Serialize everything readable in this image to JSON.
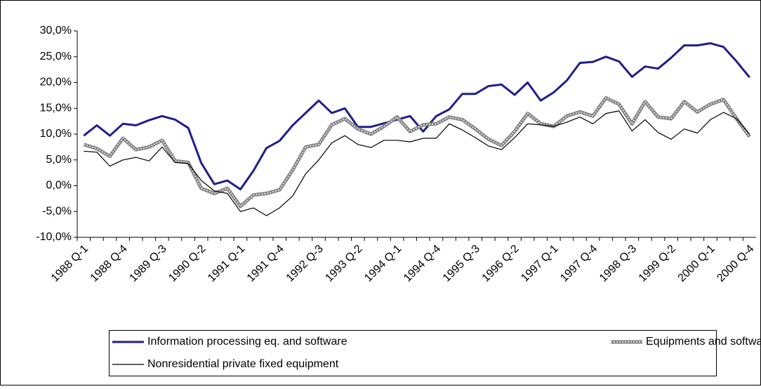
{
  "chart_data": {
    "type": "line",
    "categories": [
      "1988 Q-1",
      null,
      null,
      "1988 Q-4",
      null,
      null,
      "1989 Q-3",
      null,
      null,
      "1990 Q-2",
      null,
      null,
      "1991 Q-1",
      null,
      null,
      "1991 Q-4",
      null,
      null,
      "1992 Q-3",
      null,
      null,
      "1993 Q-2",
      null,
      null,
      "1994 Q-1",
      null,
      null,
      "1994 Q-4",
      null,
      null,
      "1995 Q-3",
      null,
      null,
      "1996 Q-2",
      null,
      null,
      "1997 Q-1",
      null,
      null,
      "1997 Q-4",
      null,
      null,
      "1998 Q-3",
      null,
      null,
      "1999 Q-2",
      null,
      null,
      "2000 Q-1",
      null,
      null,
      "2000 Q-4"
    ],
    "series": [
      {
        "name": "Information processing eq. and software",
        "color": "#1f1f8c",
        "values": [
          9.7,
          11.7,
          9.7,
          12.0,
          11.7,
          12.7,
          13.5,
          12.8,
          11.2,
          4.4,
          0.3,
          1.0,
          -0.7,
          2.9,
          7.3,
          8.7,
          11.7,
          14.1,
          16.5,
          14.1,
          15.0,
          11.4,
          11.4,
          12.1,
          12.8,
          13.5,
          10.5,
          13.5,
          14.8,
          17.8,
          17.8,
          19.3,
          19.6,
          17.6,
          20.0,
          16.5,
          18.1,
          20.4,
          23.8,
          24.0,
          25.0,
          24.1,
          21.1,
          23.1,
          22.7,
          24.8,
          27.2,
          27.2,
          27.6,
          26.9,
          24.1,
          21.0
        ]
      },
      {
        "name": "Equipments and software",
        "color": "#808080",
        "values": [
          8.0,
          7.2,
          5.7,
          9.2,
          7.0,
          7.5,
          8.8,
          4.8,
          4.5,
          -0.5,
          -1.5,
          -0.5,
          -4.0,
          -1.8,
          -1.5,
          -0.8,
          3.0,
          7.5,
          8.0,
          11.8,
          13.0,
          11.0,
          10.0,
          11.5,
          13.3,
          10.5,
          11.8,
          12.0,
          13.3,
          12.8,
          11.0,
          9.0,
          7.8,
          10.5,
          14.0,
          12.0,
          11.5,
          13.5,
          14.3,
          13.5,
          17.0,
          15.8,
          12.0,
          16.3,
          13.3,
          13.0,
          16.3,
          14.3,
          15.8,
          16.7,
          13.0,
          9.5
        ]
      },
      {
        "name": "Nonresidential private fixed equipment",
        "color": "#000000",
        "values": [
          6.7,
          6.5,
          3.8,
          5.0,
          5.5,
          4.8,
          7.5,
          4.5,
          4.3,
          1.0,
          -1.0,
          -1.5,
          -5.0,
          -4.3,
          -5.8,
          -4.3,
          -2.0,
          2.3,
          5.0,
          8.3,
          9.7,
          8.0,
          7.4,
          8.8,
          8.8,
          8.5,
          9.2,
          9.2,
          12.0,
          10.8,
          9.3,
          7.7,
          7.0,
          9.3,
          12.0,
          11.8,
          11.5,
          12.3,
          13.3,
          12.0,
          14.0,
          14.5,
          10.6,
          12.8,
          10.3,
          9.0,
          11.0,
          10.2,
          12.8,
          14.2,
          13.0,
          10.0
        ]
      }
    ],
    "ylim": [
      -10,
      30
    ],
    "yticks": [
      {
        "value": -10,
        "label": "-10,0%"
      },
      {
        "value": -5,
        "label": "-5,0%"
      },
      {
        "value": 0,
        "label": "0,0%"
      },
      {
        "value": 5,
        "label": "5,0%"
      },
      {
        "value": 10,
        "label": "10,0%"
      },
      {
        "value": 15,
        "label": "15,0%"
      },
      {
        "value": 20,
        "label": "20,0%"
      },
      {
        "value": 25,
        "label": "25,0%"
      },
      {
        "value": 30,
        "label": "30,0%"
      }
    ],
    "legend": "bottom"
  }
}
